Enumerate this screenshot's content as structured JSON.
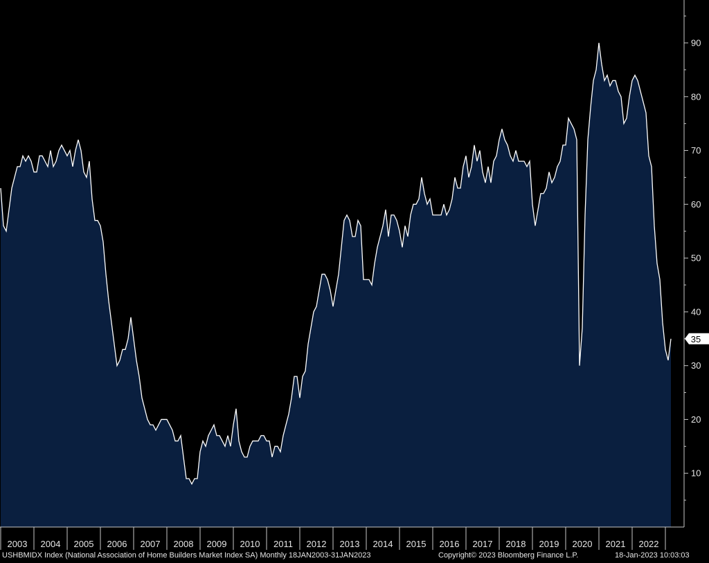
{
  "colors": {
    "background": "#000000",
    "area_fill": "#0a1f3f",
    "line": "#ffffff",
    "axis": "#c8c8c8",
    "text": "#e6e6e6"
  },
  "footer": {
    "series_desc": "USHBMIDX Index (National Association of Home Builders Market Index SA)  Monthly 18JAN2003-31JAN2023",
    "copyright": "Copyright© 2023 Bloomberg Finance L.P.",
    "timestamp": "18-Jan-2023 10:03:03"
  },
  "chart_data": {
    "type": "area",
    "grid": false,
    "ylim": [
      0,
      100
    ],
    "yticks": [
      10,
      20,
      30,
      40,
      50,
      60,
      70,
      80,
      90
    ],
    "x_labels": [
      "2003",
      "2004",
      "2005",
      "2006",
      "2007",
      "2008",
      "2009",
      "2010",
      "2011",
      "2012",
      "2013",
      "2014",
      "2015",
      "2016",
      "2017",
      "2018",
      "2019",
      "2020",
      "2021",
      "2022"
    ],
    "last_value_label": "35",
    "x_start": "2003-01",
    "values": [
      63,
      56,
      55,
      59,
      63,
      65,
      67,
      67,
      69,
      68,
      69,
      68,
      66,
      66,
      69,
      69,
      68,
      67,
      70,
      67,
      68,
      70,
      71,
      70,
      69,
      70,
      67,
      70,
      72,
      70,
      66,
      65,
      68,
      61,
      57,
      57,
      56,
      53,
      47,
      42,
      38,
      34,
      30,
      31,
      33,
      33,
      35,
      39,
      35,
      31,
      28,
      24,
      22,
      20,
      19,
      19,
      18,
      19,
      20,
      20,
      20,
      19,
      18,
      16,
      16,
      17,
      13,
      9,
      9,
      8,
      9,
      9,
      14,
      16,
      15,
      17,
      18,
      19,
      17,
      17,
      16,
      15,
      17,
      15,
      19,
      22,
      16,
      14,
      13,
      13,
      15,
      16,
      16,
      16,
      17,
      17,
      16,
      16,
      13,
      15,
      15,
      14,
      17,
      19,
      21,
      24,
      28,
      28,
      24,
      28,
      29,
      34,
      37,
      40,
      41,
      44,
      47,
      47,
      46,
      44,
      41,
      44,
      47,
      52,
      57,
      58,
      57,
      54,
      54,
      57,
      56,
      46,
      46,
      46,
      45,
      49,
      52,
      54,
      56,
      59,
      54,
      58,
      58,
      57,
      55,
      52,
      56,
      54,
      58,
      60,
      60,
      61,
      65,
      62,
      60,
      61,
      58,
      58,
      58,
      58,
      60,
      58,
      59,
      61,
      65,
      63,
      63,
      67,
      69,
      65,
      67,
      71,
      68,
      70,
      66,
      64,
      67,
      64,
      68,
      69,
      72,
      74,
      72,
      71,
      69,
      68,
      70,
      68,
      68,
      68,
      67,
      68,
      60,
      56,
      59,
      62,
      62,
      63,
      66,
      64,
      65,
      67,
      68,
      71,
      71,
      76,
      75,
      74,
      72,
      30,
      37,
      58,
      72,
      78,
      83,
      85,
      90,
      86,
      83,
      84,
      82,
      83,
      83,
      81,
      80,
      75,
      76,
      80,
      83,
      84,
      83,
      81,
      79,
      77,
      69,
      67,
      56,
      49,
      46,
      38,
      33,
      31,
      35
    ]
  }
}
